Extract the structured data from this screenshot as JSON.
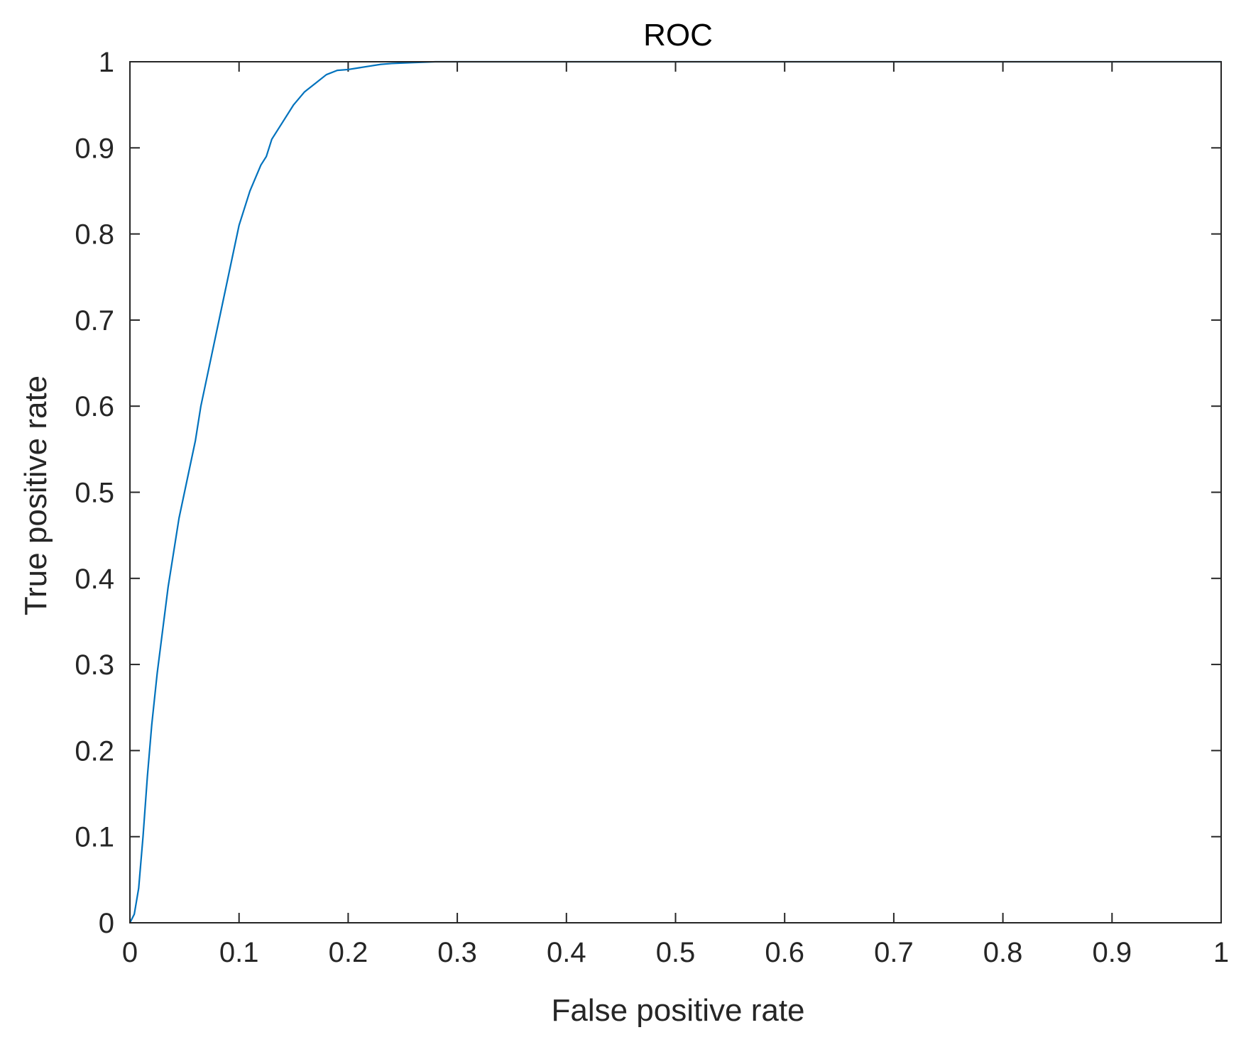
{
  "chart_data": {
    "type": "line",
    "title": "ROC",
    "xlabel": "False positive rate",
    "ylabel": "True positive rate",
    "xlim": [
      0,
      1
    ],
    "ylim": [
      0,
      1
    ],
    "x_ticks": [
      "0",
      "0.1",
      "0.2",
      "0.3",
      "0.4",
      "0.5",
      "0.6",
      "0.7",
      "0.8",
      "0.9",
      "1"
    ],
    "y_ticks": [
      "0",
      "0.1",
      "0.2",
      "0.3",
      "0.4",
      "0.5",
      "0.6",
      "0.7",
      "0.8",
      "0.9",
      "1"
    ],
    "grid": false,
    "line_color": "#0072BD",
    "series": [
      {
        "x": [
          0,
          0.004,
          0.008,
          0.012,
          0.016,
          0.02,
          0.025,
          0.03,
          0.035,
          0.04,
          0.045,
          0.05,
          0.055,
          0.06,
          0.065,
          0.07,
          0.075,
          0.08,
          0.085,
          0.09,
          0.095,
          0.1,
          0.11,
          0.12,
          0.125,
          0.13,
          0.14,
          0.15,
          0.16,
          0.17,
          0.18,
          0.19,
          0.2,
          0.21,
          0.22,
          0.23,
          0.24,
          0.26,
          0.28,
          0.3,
          0.4,
          0.5,
          0.6,
          0.7,
          0.8,
          0.9,
          1
        ],
        "y": [
          0,
          0.01,
          0.04,
          0.1,
          0.17,
          0.23,
          0.29,
          0.34,
          0.39,
          0.43,
          0.47,
          0.5,
          0.53,
          0.56,
          0.6,
          0.63,
          0.66,
          0.69,
          0.72,
          0.75,
          0.78,
          0.81,
          0.85,
          0.88,
          0.89,
          0.91,
          0.93,
          0.95,
          0.965,
          0.975,
          0.985,
          0.99,
          0.991,
          0.993,
          0.995,
          0.997,
          0.998,
          0.999,
          1.0,
          1.0,
          1.0,
          1.0,
          1.0,
          1.0,
          1.0,
          1.0,
          1.0
        ]
      }
    ]
  }
}
